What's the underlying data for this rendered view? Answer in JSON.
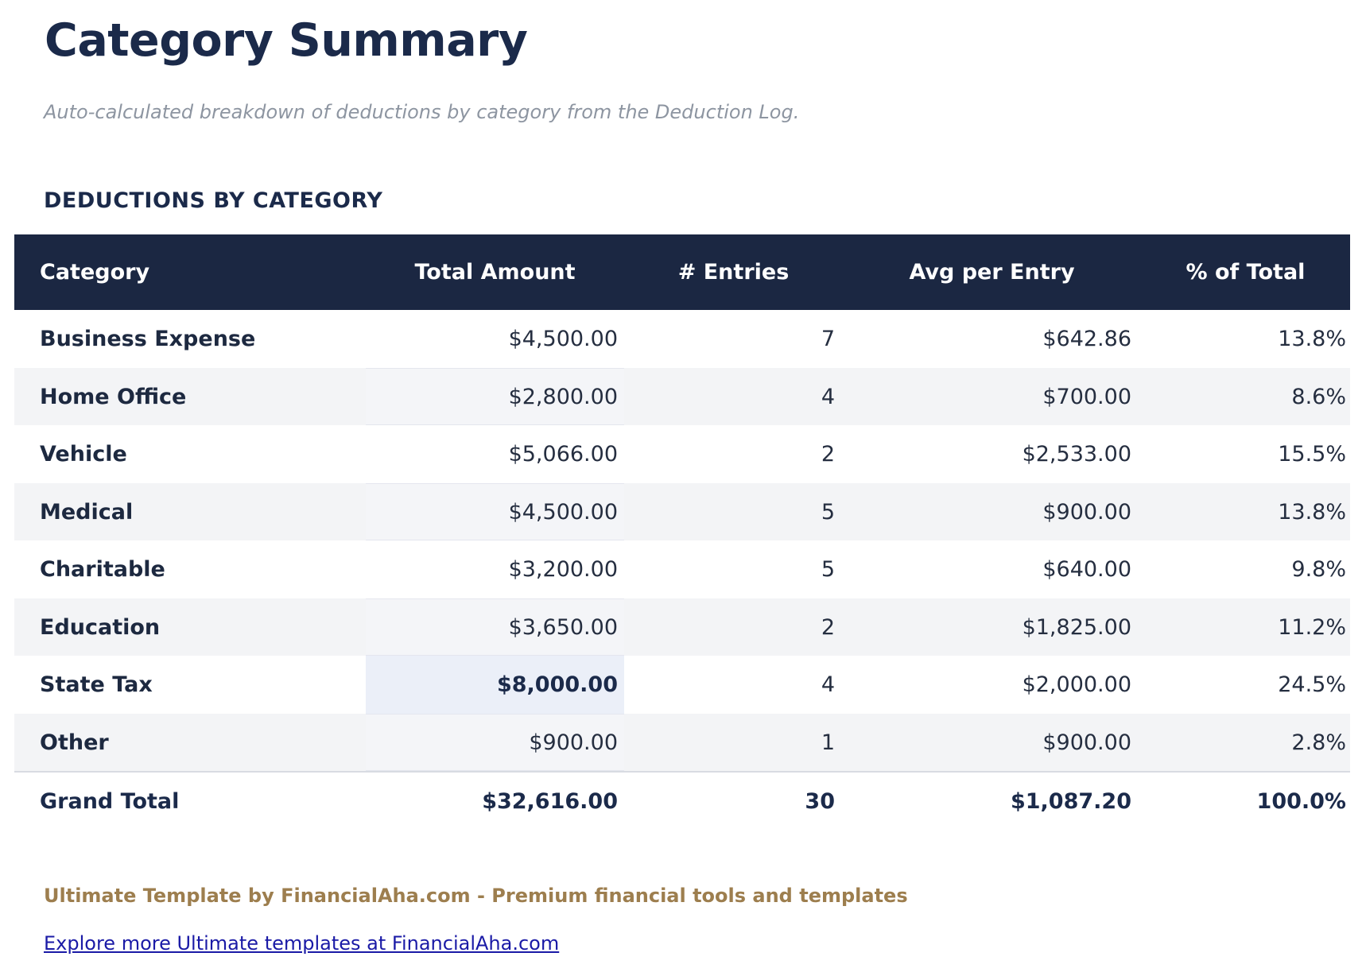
{
  "page": {
    "title": "Category Summary",
    "subtitle": "Auto-calculated breakdown of deductions by category from the Deduction Log.",
    "section_title": "DEDUCTIONS BY CATEGORY"
  },
  "table": {
    "columns": [
      "Category",
      "Total Amount",
      "# Entries",
      "Avg per Entry",
      "% of Total"
    ],
    "rows": [
      {
        "category": "Business Expense",
        "total": "$4,500.00",
        "entries": "7",
        "avg": "$642.86",
        "pct": "13.8%"
      },
      {
        "category": "Home Office",
        "total": "$2,800.00",
        "entries": "4",
        "avg": "$700.00",
        "pct": "8.6%"
      },
      {
        "category": "Vehicle",
        "total": "$5,066.00",
        "entries": "2",
        "avg": "$2,533.00",
        "pct": "15.5%"
      },
      {
        "category": "Medical",
        "total": "$4,500.00",
        "entries": "5",
        "avg": "$900.00",
        "pct": "13.8%"
      },
      {
        "category": "Charitable",
        "total": "$3,200.00",
        "entries": "5",
        "avg": "$640.00",
        "pct": "9.8%"
      },
      {
        "category": "Education",
        "total": "$3,650.00",
        "entries": "2",
        "avg": "$1,825.00",
        "pct": "11.2%"
      },
      {
        "category": "State Tax",
        "total": "$8,000.00",
        "entries": "4",
        "avg": "$2,000.00",
        "pct": "24.5%",
        "highlight_total": true
      },
      {
        "category": "Other",
        "total": "$900.00",
        "entries": "1",
        "avg": "$900.00",
        "pct": "2.8%"
      }
    ],
    "grand_total": {
      "category": "Grand Total",
      "total": "$32,616.00",
      "entries": "30",
      "avg": "$1,087.20",
      "pct": "100.0%"
    }
  },
  "footer": {
    "branding": "Ultimate Template by FinancialAha.com - Premium financial tools and templates",
    "link": "Explore more Ultimate templates at FinancialAha.com"
  },
  "colors": {
    "navy_header_bg": "#1b2742",
    "title_text": "#1b2a4a",
    "stripe_row_bg": "#f3f4f6",
    "highlight_cell_bg": "#ebeff8",
    "grand_total_border": "#d8dbe2",
    "subtitle_text": "#8d95a1",
    "branding_text": "#9d7e4e",
    "link_text": "#1a1aa6"
  }
}
